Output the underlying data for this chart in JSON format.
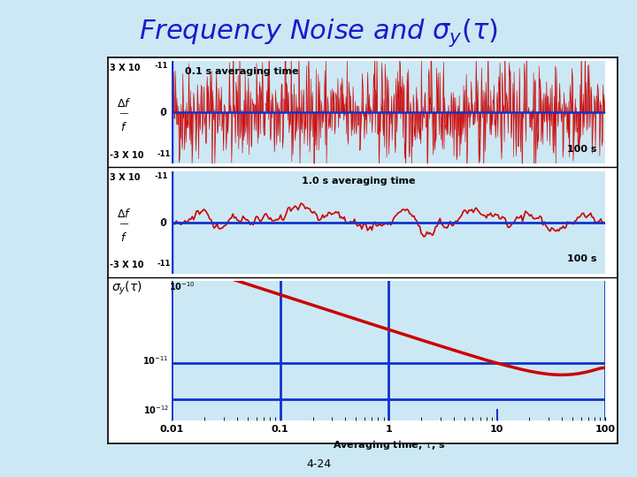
{
  "title": "Frequency Noise and $\\sigma_y(\\tau)$",
  "title_color": "#1a1acc",
  "title_fontsize": 22,
  "bg_color": "#cce8f4",
  "box_bg": "#cce8f4",
  "red_color": "#cc0000",
  "blue_color": "#1133cc",
  "panel1_label_top": "3 X 10",
  "panel1_label_top_exp": "-11",
  "panel1_label_bot": "-3 X 10",
  "panel1_label_bot_exp": "-11",
  "panel1_annotation": "0.1 s averaging time",
  "panel1_time": "100 s",
  "panel2_label_top": "3 X 10",
  "panel2_label_top_exp": "-11",
  "panel2_label_bot": "-3 X 10",
  "panel2_label_bot_exp": "-11",
  "panel2_annotation": "1.0 s averaging time",
  "panel2_time": "100 s",
  "panel3_sigma_label": "$\\sigma_y(\\tau)$",
  "panel3_exp_label": "10",
  "panel3_exp_sup": "-10",
  "panel3_xlabel": "Averaging time, $\\tau$, s",
  "footer": "4-24"
}
